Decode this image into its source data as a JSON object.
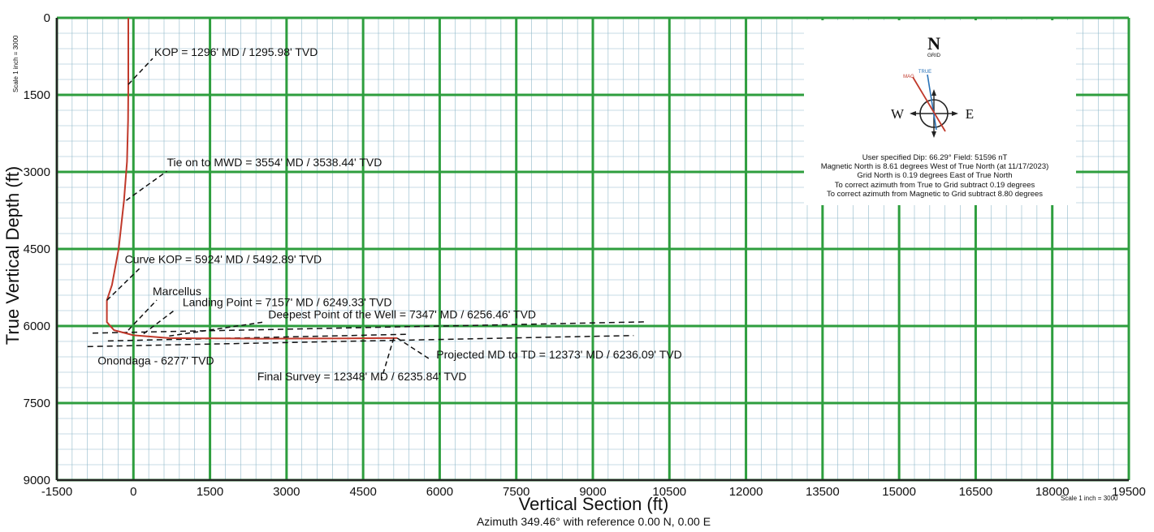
{
  "chart_data": {
    "type": "line",
    "title": "",
    "xlabel": "Vertical Section (ft)",
    "xlabel_sub": "Azimuth 349.46° with reference 0.00 N, 0.00 E",
    "ylabel": "True Vertical Depth (ft)",
    "xlim": [
      -1500,
      19500
    ],
    "ylim": [
      9000,
      0
    ],
    "y_inverted": true,
    "grid": true,
    "x_ticks": [
      "-1500",
      "0",
      "1500",
      "3000",
      "4500",
      "6000",
      "7500",
      "9000",
      "10500",
      "12000",
      "13500",
      "15000",
      "16500",
      "18000",
      "19500"
    ],
    "y_ticks": [
      "0",
      "1500",
      "3000",
      "4500",
      "6000",
      "7500",
      "9000"
    ],
    "scale_note_y": "Scale 1 inch = 3000",
    "scale_note_x": "Scale 1 inch = 3000",
    "series": [
      {
        "color": "#c0392b",
        "x": [
          -100,
          -100,
          -105,
          -125,
          -185,
          -290,
          -420,
          -520,
          -520,
          -380,
          0,
          700,
          2500,
          4200,
          4900,
          5170
        ],
        "y": [
          0,
          1296,
          2000,
          2800,
          3554,
          4500,
          5200,
          5500,
          5924,
          6080,
          6180,
          6235,
          6246,
          6240,
          6236,
          6236
        ]
      }
    ],
    "formation_lines": [
      {
        "name": "Marcellus",
        "x": [
          -800,
          10000
        ],
        "y": [
          6138,
          5920
        ]
      },
      {
        "name": "Onondaga",
        "x": [
          -900,
          9800
        ],
        "y": [
          6400,
          6185
        ]
      },
      {
        "name": "",
        "x": [
          -500,
          5400
        ],
        "y": [
          6290,
          6160
        ]
      }
    ],
    "annotations": [
      {
        "text": "KOP = 1296' MD / 1295.98' TVD",
        "x": -100,
        "y": 1296
      },
      {
        "text": "Tie on to MWD = 3554' MD / 3538.44' TVD",
        "x": -140,
        "y": 3554
      },
      {
        "text": "Curve KOP = 5924' MD / 5492.89' TVD",
        "x": -520,
        "y": 5500
      },
      {
        "text": "Marcellus",
        "x": -100,
        "y": 6080
      },
      {
        "text": "Landing Point = 7157' MD / 6249.33' TVD",
        "x": 200,
        "y": 6150
      },
      {
        "text": "Deepest Point of the Well = 7347' MD / 6256.46' TVD",
        "x": 700,
        "y": 6195
      },
      {
        "text": "Onondaga - 6277' TVD",
        "x": 0,
        "y": 6277
      },
      {
        "text": "Projected MD to TD = 12373' MD / 6236.09' TVD",
        "x": 5170,
        "y": 6236
      },
      {
        "text": "Final Survey = 12348' MD / 6235.84' TVD",
        "x": 5100,
        "y": 6235
      }
    ],
    "legend": {
      "placement": "top-right",
      "compass": {
        "n": "N",
        "grid": "GRID",
        "true_lbl": "TRUE",
        "mag_lbl": "MAG",
        "w": "W",
        "e": "E"
      },
      "lines": [
        "User specified Dip: 66.29°  Field: 51596 nT",
        "Magnetic North is 8.61 degrees West of True North (at 11/17/2023)",
        "Grid North is 0.19 degrees East of True North",
        "To correct azimuth from True to Grid subtract 0.19 degrees",
        "To correct azimuth from Magnetic to Grid subtract 8.80 degrees"
      ]
    },
    "colors": {
      "major_grid": "#2e9e3e",
      "minor_grid": "#8fb8c9",
      "well": "#c0392b",
      "accent": "#2a73b8"
    }
  }
}
